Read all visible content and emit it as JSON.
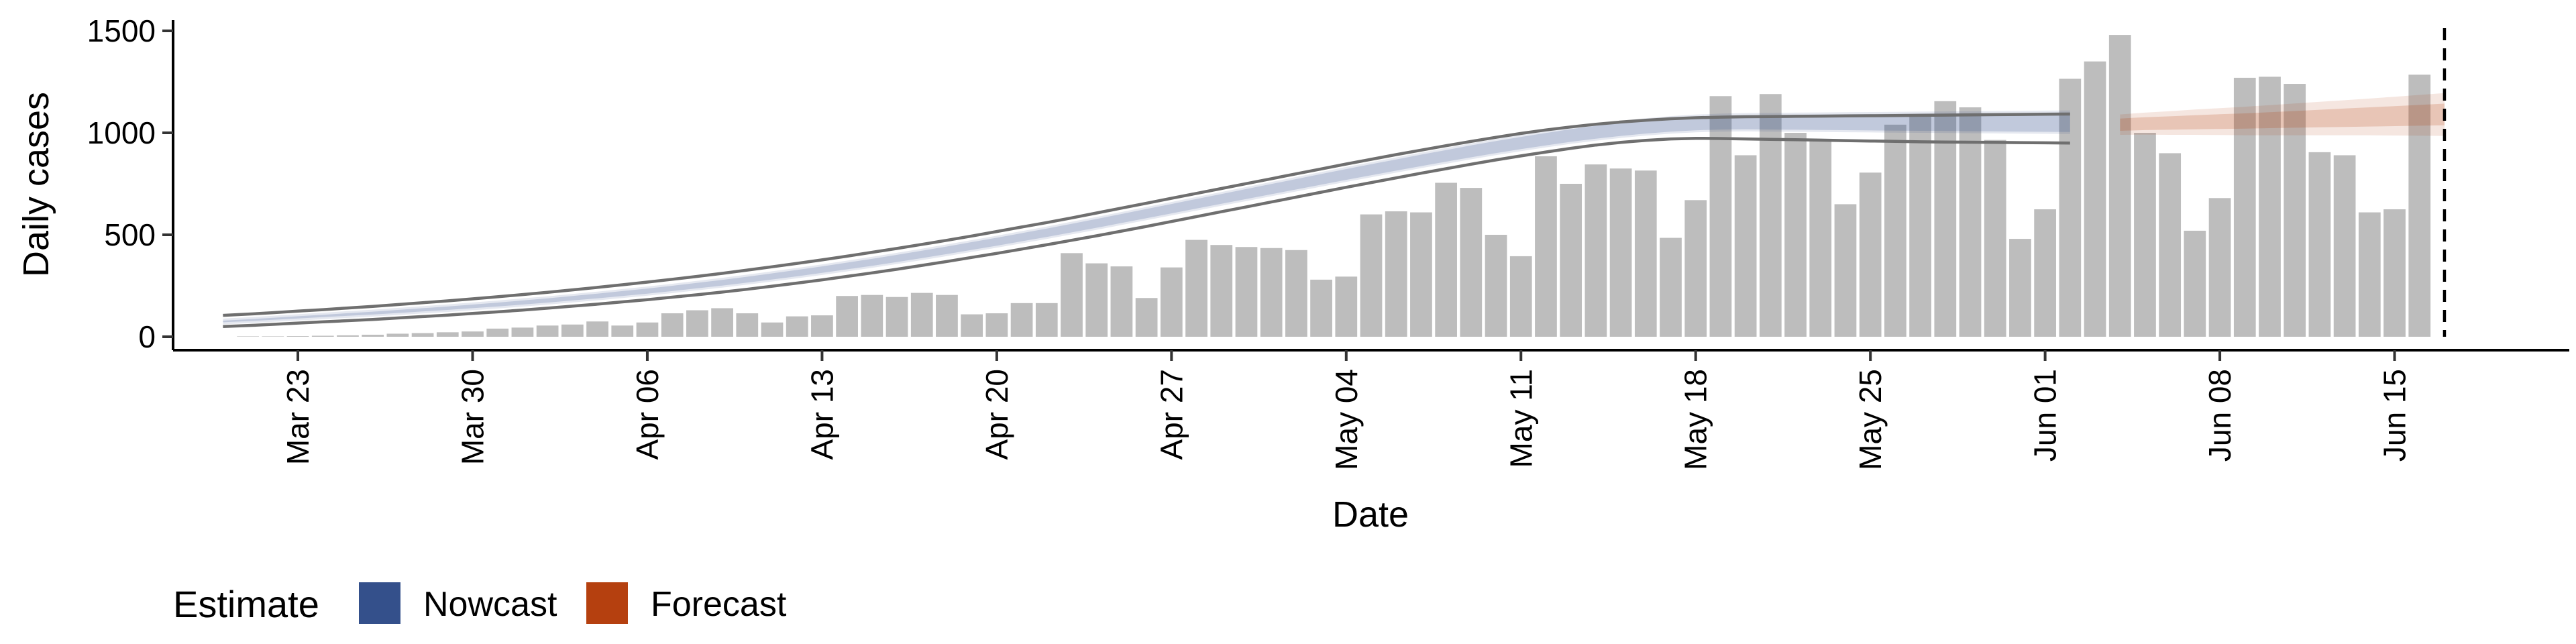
{
  "chart_data": {
    "type": "bar",
    "xlabel": "Date",
    "ylabel": "Daily cases",
    "ylim": [
      0,
      1550
    ],
    "yticks": [
      0,
      500,
      1000,
      1500
    ],
    "x_range": [
      "2020-03-18",
      "2020-06-22"
    ],
    "xticks": [
      {
        "date": "2020-03-23",
        "label": "Mar 23"
      },
      {
        "date": "2020-03-30",
        "label": "Mar 30"
      },
      {
        "date": "2020-04-06",
        "label": "Apr 06"
      },
      {
        "date": "2020-04-13",
        "label": "Apr 13"
      },
      {
        "date": "2020-04-20",
        "label": "Apr 20"
      },
      {
        "date": "2020-04-27",
        "label": "Apr 27"
      },
      {
        "date": "2020-05-04",
        "label": "May 04"
      },
      {
        "date": "2020-05-11",
        "label": "May 11"
      },
      {
        "date": "2020-05-18",
        "label": "May 18"
      },
      {
        "date": "2020-05-25",
        "label": "May 25"
      },
      {
        "date": "2020-06-01",
        "label": "Jun 01"
      },
      {
        "date": "2020-06-08",
        "label": "Jun 08"
      },
      {
        "date": "2020-06-15",
        "label": "Jun 15"
      }
    ],
    "grid": false,
    "legend_position": "bottom-left",
    "vline": {
      "date": "2020-06-17",
      "style": "dashed"
    },
    "bars": {
      "start_date": "2020-03-21",
      "color": "#bdbdbd",
      "values": [
        2,
        2,
        3,
        5,
        7,
        10,
        15,
        18,
        22,
        26,
        40,
        45,
        55,
        60,
        75,
        55,
        70,
        115,
        130,
        140,
        115,
        70,
        100,
        105,
        200,
        205,
        195,
        215,
        205,
        110,
        115,
        165,
        165,
        410,
        360,
        345,
        190,
        340,
        475,
        450,
        440,
        435,
        425,
        280,
        295,
        600,
        615,
        610,
        755,
        730,
        500,
        395,
        885,
        750,
        845,
        825,
        815,
        485,
        670,
        1180,
        890,
        1190,
        1000,
        960,
        650,
        805,
        1040,
        1090,
        1155,
        1125,
        965,
        480,
        625,
        1265,
        1350,
        1480,
        1000,
        900,
        520,
        680,
        1270,
        1275,
        1240,
        905,
        890,
        610,
        625,
        1285
      ]
    },
    "series": [
      {
        "name": "Nowcast",
        "color": "#34508b",
        "start_date": "2020-03-20",
        "median": [
          75,
          81,
          88,
          95,
          102,
          109,
          116,
          124,
          132,
          140,
          149,
          158,
          168,
          178,
          189,
          200,
          212,
          224,
          237,
          251,
          265,
          280,
          296,
          312,
          329,
          347,
          365,
          384,
          404,
          424,
          445,
          466,
          488,
          510,
          533,
          556,
          580,
          604,
          628,
          652,
          676,
          700,
          724,
          748,
          772,
          796,
          819,
          842,
          865,
          887,
          909,
          930,
          950,
          969,
          987,
          1003,
          1017,
          1029,
          1039,
          1046,
          1050,
          1052,
          1052,
          1052,
          1052,
          1052,
          1052,
          1052,
          1052,
          1052,
          1052,
          1052,
          1052,
          1052,
          1052
        ],
        "inner_width": [
          8,
          9,
          10,
          11,
          12,
          13,
          14,
          15,
          16,
          17,
          18,
          19,
          20,
          21,
          22,
          23,
          24,
          25,
          26,
          27,
          28,
          29,
          30,
          31,
          32,
          33,
          34,
          35,
          36,
          37,
          38,
          39,
          40,
          41,
          42,
          43,
          44,
          45,
          46,
          47,
          48,
          49,
          50,
          51,
          52,
          53,
          54,
          55,
          56,
          57,
          58,
          59,
          60,
          61,
          62,
          63,
          64,
          65,
          66,
          67,
          68,
          70,
          72,
          74,
          76,
          78,
          80,
          82,
          84,
          86,
          88,
          90,
          92,
          94,
          96
        ],
        "outer_width": [
          28,
          29,
          30,
          31,
          32,
          33,
          34,
          35,
          36,
          37,
          38,
          39,
          40,
          41,
          42,
          43,
          44,
          45,
          46,
          47,
          48,
          49,
          50,
          51,
          52,
          53,
          54,
          55,
          56,
          57,
          58,
          59,
          60,
          61,
          62,
          63,
          64,
          65,
          66,
          67,
          68,
          69,
          70,
          71,
          72,
          73,
          74,
          75,
          76,
          77,
          78,
          79,
          80,
          81,
          82,
          83,
          84,
          85,
          86,
          87,
          88,
          90,
          92,
          94,
          96,
          98,
          100,
          102,
          104,
          106,
          108,
          110,
          112,
          114,
          116
        ],
        "upper_line": [
          105,
          111,
          118,
          126,
          133,
          141,
          149,
          158,
          167,
          176,
          186,
          196,
          207,
          218,
          230,
          242,
          255,
          268,
          282,
          296,
          311,
          327,
          343,
          360,
          377,
          395,
          414,
          433,
          453,
          473,
          494,
          516,
          538,
          560,
          583,
          607,
          631,
          655,
          679,
          703,
          727,
          751,
          775,
          799,
          823,
          847,
          870,
          893,
          915,
          937,
          958,
          978,
          997,
          1014,
          1029,
          1042,
          1053,
          1062,
          1069,
          1074,
          1077,
          1079,
          1080,
          1081,
          1082,
          1083,
          1084,
          1085,
          1086,
          1087,
          1088,
          1089,
          1090,
          1091,
          1092
        ],
        "lower_line": [
          50,
          55,
          61,
          67,
          73,
          79,
          85,
          92,
          99,
          106,
          114,
          122,
          131,
          140,
          150,
          160,
          171,
          182,
          194,
          206,
          219,
          233,
          248,
          263,
          279,
          296,
          313,
          331,
          350,
          369,
          389,
          409,
          430,
          451,
          473,
          495,
          518,
          541,
          565,
          589,
          613,
          637,
          661,
          685,
          709,
          733,
          756,
          779,
          802,
          824,
          846,
          867,
          887,
          906,
          924,
          940,
          953,
          963,
          970,
          973,
          972,
          970,
          968,
          966,
          964,
          962,
          960,
          958,
          956,
          955,
          954,
          953,
          952,
          951,
          950
        ]
      },
      {
        "name": "Forecast",
        "color": "#b5400f",
        "start_date": "2020-06-04",
        "median": [
          1040,
          1045,
          1048,
          1052,
          1055,
          1058,
          1062,
          1066,
          1070,
          1074,
          1078,
          1082,
          1086,
          1090
        ],
        "inner_width": [
          60,
          63,
          66,
          69,
          72,
          75,
          78,
          82,
          86,
          90,
          94,
          98,
          102,
          106
        ],
        "outer_width": [
          100,
          108,
          116,
          124,
          132,
          140,
          148,
          156,
          164,
          172,
          180,
          190,
          200,
          210
        ]
      }
    ],
    "legend": {
      "title": "Estimate",
      "entries": [
        {
          "label": "Nowcast",
          "color": "#34508b"
        },
        {
          "label": "Forecast",
          "color": "#b5400f"
        }
      ]
    }
  }
}
